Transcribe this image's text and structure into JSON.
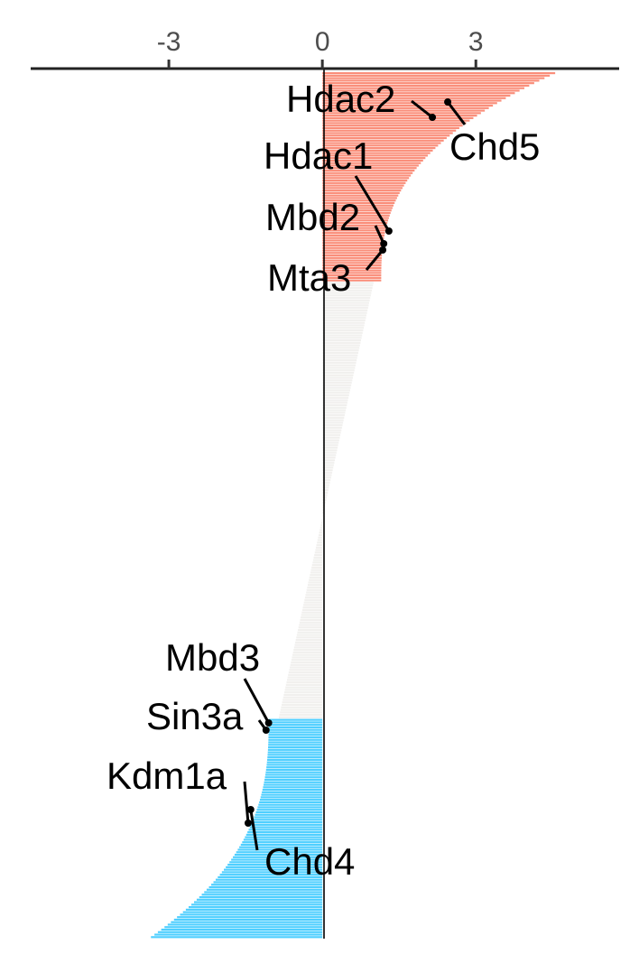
{
  "chart_data": {
    "type": "bar",
    "orientation": "horizontal",
    "xaxis_position": "top",
    "grid": false,
    "xticks": [
      {
        "value": -3,
        "label": "-3"
      },
      {
        "value": 0,
        "label": "0"
      },
      {
        "value": 3,
        "label": "3"
      }
    ],
    "xlim": [
      -5.7,
      5.8
    ],
    "colors": {
      "up": "#FA8E7A",
      "neutral": "#F1F0EE",
      "down": "#4FCFFF"
    },
    "categories": {
      "up": 84,
      "neutral": 175,
      "down": 88
    },
    "value_profile": {
      "up": {
        "first": 4.55,
        "last": 1.15
      },
      "neutral": {
        "first": 1.0,
        "last": -0.85
      },
      "down": {
        "first": -1.05,
        "last": -3.35
      }
    },
    "annotations": [
      {
        "label": "Hdac2",
        "value": 2.15
      },
      {
        "label": "Chd5",
        "value": 2.45
      },
      {
        "label": "Hdac1",
        "value": 1.3
      },
      {
        "label": "Mbd2",
        "value": 1.2
      },
      {
        "label": "Mta3",
        "value": 1.18
      },
      {
        "label": "Mbd3",
        "value": -1.05
      },
      {
        "label": "Sin3a",
        "value": -1.1
      },
      {
        "label": "Kdm1a",
        "value": -1.45
      },
      {
        "label": "Chd4",
        "value": -1.4
      }
    ]
  }
}
